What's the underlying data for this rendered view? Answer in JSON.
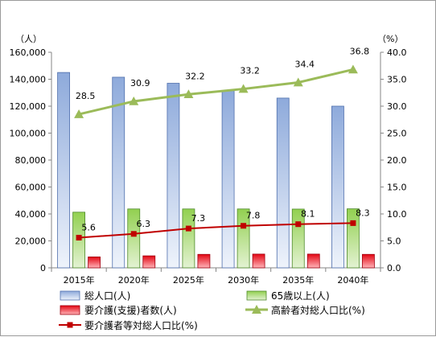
{
  "chart_data": {
    "type": "bar",
    "categories": [
      "2015年",
      "2020年",
      "2025年",
      "2030年",
      "2035年",
      "2040年"
    ],
    "y_left": {
      "unit_label": "（人）",
      "min": 0,
      "max": 160000,
      "step": 20000,
      "tick_labels": [
        "0",
        "20,000",
        "40,000",
        "60,000",
        "80,000",
        "100,000",
        "120,000",
        "140,000",
        "160,000"
      ]
    },
    "y_right": {
      "unit_label": "（%）",
      "min": 0,
      "max": 40,
      "step": 5,
      "tick_labels": [
        "0.0",
        "5.0",
        "10.0",
        "15.0",
        "20.0",
        "25.0",
        "30.0",
        "35.0",
        "40.0"
      ]
    },
    "grid": false,
    "legend_position": "bottom",
    "series": [
      {
        "name": "総人口(人)",
        "kind": "bar",
        "axis": "left",
        "color": "#8eaadb",
        "values": [
          145000,
          141500,
          137000,
          131500,
          126000,
          120000
        ]
      },
      {
        "name": "65歳以上(人)",
        "kind": "bar",
        "axis": "left",
        "color": "#92d050",
        "values": [
          41300,
          43700,
          43700,
          43700,
          43600,
          43800
        ]
      },
      {
        "name": "要介護(支援)者数(人)",
        "kind": "bar",
        "axis": "left",
        "color": "#e30613",
        "values": [
          8100,
          8900,
          10000,
          10200,
          10200,
          10000
        ]
      },
      {
        "name": "高齢者対総人口比(%)",
        "kind": "line",
        "axis": "right",
        "color": "#9bbb59",
        "values": [
          28.5,
          30.9,
          32.2,
          33.2,
          34.4,
          36.8
        ],
        "labels": [
          "28.5",
          "30.9",
          "32.2",
          "33.2",
          "34.4",
          "36.8"
        ]
      },
      {
        "name": "要介護者等対総人口比(%)",
        "kind": "line",
        "axis": "right",
        "color": "#c00000",
        "values": [
          5.6,
          6.3,
          7.3,
          7.8,
          8.1,
          8.3
        ],
        "labels": [
          "5.6",
          "6.3",
          "7.3",
          "7.8",
          "8.1",
          "8.3"
        ]
      }
    ]
  }
}
